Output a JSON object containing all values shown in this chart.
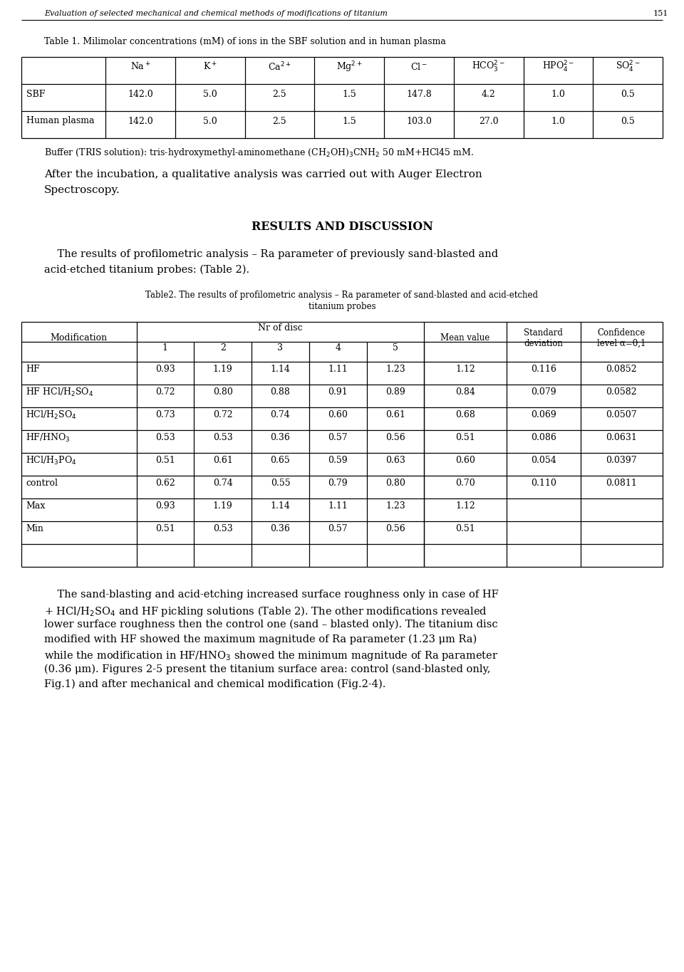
{
  "page_title": "Evaluation of selected mechanical and chemical methods of modifications of titanium",
  "page_number": "151",
  "table1_title": "Table 1. Milimolar concentrations (mM) of ions in the SBF solution and in human plasma",
  "table1_headers": [
    "",
    "Na$^+$",
    "K$^+$",
    "Ca$^{2+}$",
    "Mg$^{2+}$",
    "Cl$^-$",
    "HCO$_3^{2-}$",
    "HPO$_4^{2-}$",
    "SO$_4^{2-}$"
  ],
  "table1_rows": [
    [
      "SBF",
      "142.0",
      "5.0",
      "2.5",
      "1.5",
      "147.8",
      "4.2",
      "1.0",
      "0.5"
    ],
    [
      "Human plasma",
      "142.0",
      "5.0",
      "2.5",
      "1.5",
      "103.0",
      "27.0",
      "1.0",
      "0.5"
    ]
  ],
  "buffer_text": "Buffer (TRIS solution): tris-hydroxymethyl-aminomethane (CH$_2$OH)$_3$CNH$_2$ 50 mM+HCl45 mM.",
  "para1_line1": "After the incubation, a qualitative analysis was carried out with Auger Electron",
  "para1_line2": "Spectroscopy.",
  "section_title": "RESULTS AND DISCUSSION",
  "para2_line1": "    The results of profilometric analysis – Ra parameter of previously sand-blasted and",
  "para2_line2": "acid-etched titanium probes: (Table 2).",
  "table2_title_line1": "Table2. The results of profilometric analysis – Ra parameter of sand-blasted and acid-etched",
  "table2_title_line2": "titanium probes",
  "table2_col_header_left": "Modification",
  "table2_group_header": "Nr of disc",
  "table2_disc_nums": [
    "1",
    "2",
    "3",
    "4",
    "5"
  ],
  "table2_col_headers_right": [
    "Mean value",
    "Standard\ndeviation",
    "Confidence\nlevel α=0,1"
  ],
  "table2_rows": [
    [
      "HF",
      "0.93",
      "1.19",
      "1.14",
      "1.11",
      "1.23",
      "1.12",
      "0.116",
      "0.0852"
    ],
    [
      "HF HCl/H$_2$SO$_4$",
      "0.72",
      "0.80",
      "0.88",
      "0.91",
      "0.89",
      "0.84",
      "0.079",
      "0.0582"
    ],
    [
      "HCl/H$_2$SO$_4$",
      "0.73",
      "0.72",
      "0.74",
      "0.60",
      "0.61",
      "0.68",
      "0.069",
      "0.0507"
    ],
    [
      "HF/HNO$_3$",
      "0.53",
      "0.53",
      "0.36",
      "0.57",
      "0.56",
      "0.51",
      "0.086",
      "0.0631"
    ],
    [
      "HCl/H$_3$PO$_4$",
      "0.51",
      "0.61",
      "0.65",
      "0.59",
      "0.63",
      "0.60",
      "0.054",
      "0.0397"
    ],
    [
      "control",
      "0.62",
      "0.74",
      "0.55",
      "0.79",
      "0.80",
      "0.70",
      "0.110",
      "0.0811"
    ],
    [
      "Max",
      "0.93",
      "1.19",
      "1.14",
      "1.11",
      "1.23",
      "1.12",
      "",
      ""
    ],
    [
      "Min",
      "0.51",
      "0.53",
      "0.36",
      "0.57",
      "0.56",
      "0.51",
      "",
      ""
    ]
  ],
  "para3_lines": [
    "    The sand-blasting and acid-etching increased surface roughness only in case of HF",
    "+ HCl/H$_2$SO$_4$ and HF pickling solutions (Table 2). The other modifications revealed",
    "lower surface roughness then the control one (sand – blasted only). The titanium disc",
    "modified with HF showed the maximum magnitude of Ra parameter (1.23 μm Ra)",
    "while the modification in HF/HNO$_3$ showed the minimum magnitude of Ra parameter",
    "(0.36 μm). Figures 2-5 present the titanium surface area: control (sand-blasted only,",
    "Fig.1) and after mechanical and chemical modification (Fig.2-4)."
  ],
  "bg_color": "#ffffff",
  "text_color": "#000000"
}
